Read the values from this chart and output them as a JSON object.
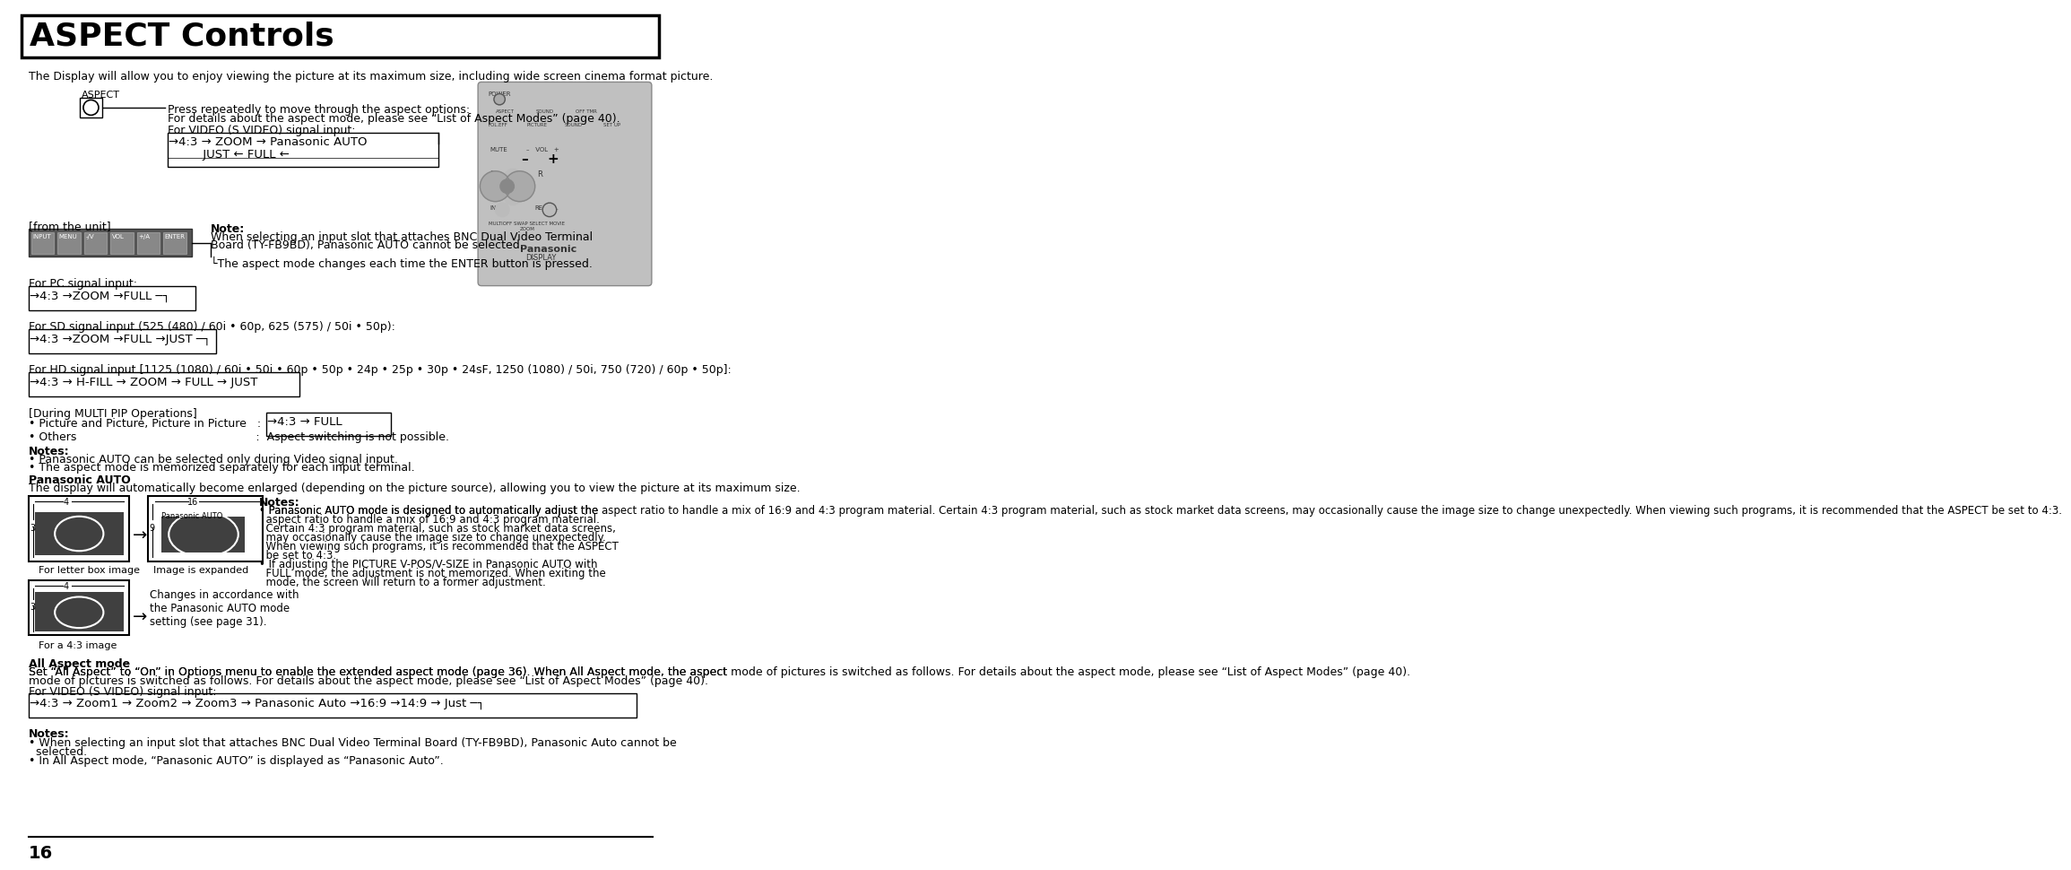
{
  "title": "ASPECT Controls",
  "bg_color": "#ffffff",
  "border_color": "#000000",
  "text_color": "#000000",
  "page_number": "16",
  "intro_text": "The Display will allow you to enjoy viewing the picture at its maximum size, including wide screen cinema format picture.",
  "sections": [
    {
      "label": "aspect_button_section",
      "aspect_label": "ASPECT",
      "press_text": "Press repeatedly to move through the aspect options:",
      "press_text2": "For details about the aspect mode, please see “List of Aspect Modes” (page 40).",
      "video_label": "For VIDEO (S VIDEO) signal input:",
      "video_flow": "→4:3 → ZOOM → Panasonic AUTO ─┐",
      "video_flow2": "└─────── JUST ← FULL ←┘"
    }
  ],
  "from_unit_label": "[from the unit]",
  "unit_buttons": [
    "INPUT",
    "MENU",
    "-/V",
    "VOL",
    "+/A",
    "ENTER"
  ],
  "note_label": "Note:",
  "note_text1": "When selecting an input slot that attaches BNC Dual Video Terminal",
  "note_text2": "Board (TY-FB9BD), Panasonic AUTO cannot be selected.",
  "note_text3": "The aspect mode changes each time the ENTER button is pressed.",
  "pc_label": "For PC signal input:",
  "pc_flow": "→4:3 →ZOOM →FULL ─┐",
  "pc_flow_end": "└─────────────┘",
  "sd_label": "For SD signal input (525 (480) / 60i • 60p, 625 (575) / 50i • 50p):",
  "sd_flow": "→4:3 →ZOOM →FULL →JUST ─┐",
  "sd_flow_end": "└──────────────────┘",
  "hd_label": "For HD signal input [1125 (1080) / 60i • 50i • 60p • 50p • 24p • 25p • 30p • 24sF, 1250 (1080) / 50i, 750 (720) / 60p • 50p]:",
  "hd_flow": "→4:3 → H-FILL → ZOOM → FULL → JUST ─┐",
  "hd_flow_end": "└─────────────────────────┘",
  "multi_label": "[During MULTI PIP Operations]",
  "multi_pip": "• Picture and Picture, Picture in Picture   :",
  "multi_pip_flow": "→4:3 → FULL ─┐",
  "multi_pip_end": "└────────┘",
  "multi_others": "• Others                                                  :  Aspect switching is not possible.",
  "notes2_label": "Notes:",
  "notes2_1": "• Panasonic AUTO can be selected only during Video signal input.",
  "notes2_2": "• The aspect mode is memorized separately for each input terminal.",
  "panasonic_auto_label": "Panasonic AUTO",
  "panasonic_auto_desc": "The display will automatically become enlarged (depending on the picture source), allowing you to view the picture at its maximum size.",
  "letter_box_label": "For letter box image",
  "expanded_label": "Image is expanded",
  "a43_label": "For a 4:3 image",
  "changes_text": "Changes in accordance with\nthe Panasonic AUTO mode\nsetting (see page 31).",
  "notes3_label": "Notes:",
  "notes3_1": "• Panasonic AUTO mode is designed to automatically adjust the aspect ratio to handle a mix of 16:9 and 4:3 program material. Certain 4:3 program material, such as stock market data screens, may occasionally cause the image size to change unexpectedly. When viewing such programs, it is recommended that the ASPECT be set to 4:3.",
  "notes3_2": "• If adjusting the PICTURE V-POS/V-SIZE in Panasonic AUTO with FULL mode, the adjustment is not memorized. When exiting the mode, the screen will return to a former adjustment.",
  "all_aspect_label": "All Aspect mode",
  "all_aspect_desc": "Set “All Aspect” to “On” in Options menu to enable the extended aspect mode (page 36). When All Aspect mode, the aspect mode of pictures is switched as follows. For details about the aspect mode, please see “List of Aspect Modes” (page 40).",
  "all_video_label": "For VIDEO (S VIDEO) signal input:",
  "all_video_flow": "→4:3 → Zoom1 → Zoom2 → Zoom3 → Panasonic Auto →16:9 →14:9 → Just ─┐",
  "all_video_end": "└──────────────────────────────────────────────┘",
  "notes4_label": "Notes:",
  "notes4_1": "• When selecting an input slot that attaches BNC Dual Video Terminal Board (TY-FB9BD), Panasonic Auto cannot be selected.",
  "notes4_2": "• In All Aspect mode, “Panasonic AUTO” is displayed as “Panasonic Auto”."
}
